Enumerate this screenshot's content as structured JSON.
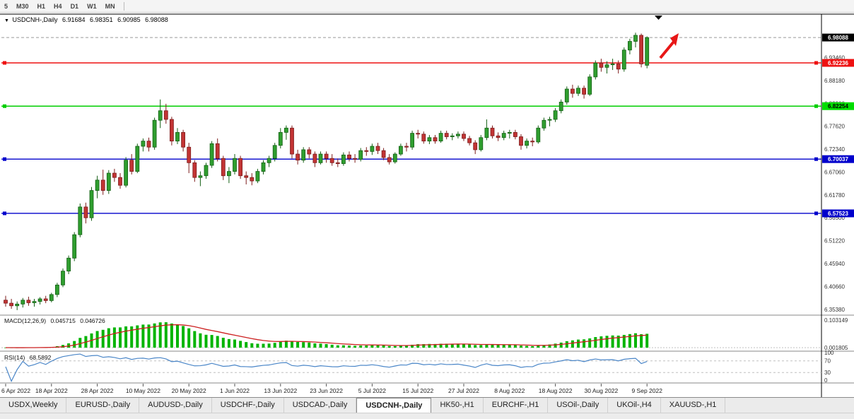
{
  "colors": {
    "bull": "#2f9e2f",
    "bull_dark": "#166016",
    "bear": "#c23434",
    "bear_dark": "#7e1d1d",
    "macd_histogram": "#00b400",
    "macd_signal": "#cc2020",
    "rsi_line": "#4a86c8",
    "arrow": "#e81717",
    "axis_text": "#333333",
    "date_text": "#222222"
  },
  "toolbar": {
    "timeframes": [
      "5",
      "M30",
      "H1",
      "H4",
      "D1",
      "W1",
      "MN"
    ]
  },
  "quote_line": {
    "symbol": "USDCNH-,Daily",
    "open": "6.91684",
    "high": "6.98351",
    "low": "6.90985",
    "close": "6.98088"
  },
  "chart_data": {
    "type": "candlestick",
    "symbol": "USDCNH",
    "timeframe": "Daily",
    "ylim": [
      6.342,
      7.035
    ],
    "y_axis_labels": [
      "6.93460",
      "6.88180",
      "6.82900",
      "6.77620",
      "6.72340",
      "6.67060",
      "6.61780",
      "6.56500",
      "6.51220",
      "6.45940",
      "6.40660",
      "6.35380"
    ],
    "x_dates": [
      [
        "6 Apr 2022",
        0
      ],
      [
        "18 Apr 2022",
        8
      ],
      [
        "28 Apr 2022",
        16
      ],
      [
        "10 May 2022",
        24
      ],
      [
        "20 May 2022",
        32
      ],
      [
        "1 Jun 2022",
        40
      ],
      [
        "13 Jun 2022",
        48
      ],
      [
        "23 Jun 2022",
        56
      ],
      [
        "5 Jul 2022",
        64
      ],
      [
        "15 Jul 2022",
        72
      ],
      [
        "27 Jul 2022",
        80
      ],
      [
        "8 Aug 2022",
        88
      ],
      [
        "18 Aug 2022",
        96
      ],
      [
        "30 Aug 2022",
        104
      ],
      [
        "9 Sep 2022",
        112
      ]
    ],
    "candles": [
      [
        6.375,
        6.385,
        6.36,
        6.368
      ],
      [
        6.368,
        6.378,
        6.355,
        6.362
      ],
      [
        6.362,
        6.372,
        6.352,
        6.366
      ],
      [
        6.366,
        6.38,
        6.358,
        6.375
      ],
      [
        6.375,
        6.383,
        6.362,
        6.369
      ],
      [
        6.369,
        6.378,
        6.36,
        6.372
      ],
      [
        6.372,
        6.382,
        6.365,
        6.378
      ],
      [
        6.378,
        6.385,
        6.368,
        6.374
      ],
      [
        6.374,
        6.392,
        6.37,
        6.388
      ],
      [
        6.388,
        6.415,
        6.382,
        6.41
      ],
      [
        6.41,
        6.448,
        6.405,
        6.442
      ],
      [
        6.442,
        6.478,
        6.435,
        6.472
      ],
      [
        6.472,
        6.532,
        6.465,
        6.526
      ],
      [
        6.526,
        6.598,
        6.52,
        6.59
      ],
      [
        6.59,
        6.6,
        6.552,
        6.565
      ],
      [
        6.565,
        6.636,
        6.558,
        6.628
      ],
      [
        6.628,
        6.662,
        6.61,
        6.652
      ],
      [
        6.652,
        6.676,
        6.618,
        6.628
      ],
      [
        6.628,
        6.675,
        6.62,
        6.668
      ],
      [
        6.668,
        6.678,
        6.648,
        6.658
      ],
      [
        6.658,
        6.668,
        6.632,
        6.64
      ],
      [
        6.64,
        6.705,
        6.635,
        6.698
      ],
      [
        6.698,
        6.712,
        6.665,
        6.672
      ],
      [
        6.672,
        6.736,
        6.668,
        6.73
      ],
      [
        6.73,
        6.748,
        6.718,
        6.742
      ],
      [
        6.742,
        6.75,
        6.718,
        6.728
      ],
      [
        6.728,
        6.796,
        6.722,
        6.79
      ],
      [
        6.79,
        6.838,
        6.772,
        6.812
      ],
      [
        6.812,
        6.828,
        6.782,
        6.792
      ],
      [
        6.792,
        6.798,
        6.732,
        6.742
      ],
      [
        6.742,
        6.772,
        6.735,
        6.762
      ],
      [
        6.762,
        6.768,
        6.718,
        6.728
      ],
      [
        6.728,
        6.738,
        6.668,
        6.692
      ],
      [
        6.692,
        6.698,
        6.648,
        6.658
      ],
      [
        6.658,
        6.672,
        6.638,
        6.662
      ],
      [
        6.662,
        6.692,
        6.655,
        6.686
      ],
      [
        6.686,
        6.742,
        6.68,
        6.736
      ],
      [
        6.736,
        6.748,
        6.695,
        6.702
      ],
      [
        6.702,
        6.708,
        6.652,
        6.662
      ],
      [
        6.662,
        6.682,
        6.645,
        6.672
      ],
      [
        6.672,
        6.712,
        6.665,
        6.702
      ],
      [
        6.702,
        6.708,
        6.655,
        6.662
      ],
      [
        6.662,
        6.672,
        6.642,
        6.658
      ],
      [
        6.658,
        6.668,
        6.64,
        6.65
      ],
      [
        6.65,
        6.678,
        6.645,
        6.672
      ],
      [
        6.672,
        6.698,
        6.665,
        6.692
      ],
      [
        6.692,
        6.708,
        6.682,
        6.702
      ],
      [
        6.702,
        6.738,
        6.695,
        6.732
      ],
      [
        6.732,
        6.772,
        6.725,
        6.762
      ],
      [
        6.762,
        6.778,
        6.745,
        6.772
      ],
      [
        6.772,
        6.778,
        6.702,
        6.712
      ],
      [
        6.712,
        6.722,
        6.688,
        6.698
      ],
      [
        6.698,
        6.728,
        6.692,
        6.722
      ],
      [
        6.722,
        6.728,
        6.702,
        6.712
      ],
      [
        6.712,
        6.718,
        6.682,
        6.692
      ],
      [
        6.692,
        6.718,
        6.688,
        6.712
      ],
      [
        6.712,
        6.718,
        6.692,
        6.702
      ],
      [
        6.702,
        6.712,
        6.685,
        6.692
      ],
      [
        6.692,
        6.702,
        6.682,
        6.69
      ],
      [
        6.69,
        6.716,
        6.685,
        6.71
      ],
      [
        6.71,
        6.718,
        6.695,
        6.702
      ],
      [
        6.702,
        6.712,
        6.692,
        6.7
      ],
      [
        6.7,
        6.726,
        6.695,
        6.72
      ],
      [
        6.72,
        6.728,
        6.708,
        6.718
      ],
      [
        6.718,
        6.736,
        6.71,
        6.73
      ],
      [
        6.73,
        6.738,
        6.712,
        6.72
      ],
      [
        6.72,
        6.726,
        6.698,
        6.704
      ],
      [
        6.704,
        6.712,
        6.688,
        6.694
      ],
      [
        6.694,
        6.716,
        6.69,
        6.712
      ],
      [
        6.712,
        6.736,
        6.708,
        6.73
      ],
      [
        6.73,
        6.738,
        6.718,
        6.728
      ],
      [
        6.728,
        6.766,
        6.722,
        6.76
      ],
      [
        6.76,
        6.768,
        6.748,
        6.758
      ],
      [
        6.758,
        6.764,
        6.736,
        6.742
      ],
      [
        6.742,
        6.756,
        6.735,
        6.75
      ],
      [
        6.75,
        6.756,
        6.736,
        6.742
      ],
      [
        6.742,
        6.766,
        6.738,
        6.76
      ],
      [
        6.76,
        6.766,
        6.746,
        6.752
      ],
      [
        6.752,
        6.76,
        6.744,
        6.754
      ],
      [
        6.754,
        6.764,
        6.748,
        6.758
      ],
      [
        6.758,
        6.764,
        6.742,
        6.748
      ],
      [
        6.748,
        6.754,
        6.732,
        6.738
      ],
      [
        6.738,
        6.744,
        6.712,
        6.722
      ],
      [
        6.722,
        6.756,
        6.718,
        6.75
      ],
      [
        6.75,
        6.792,
        6.744,
        6.772
      ],
      [
        6.772,
        6.778,
        6.748,
        6.754
      ],
      [
        6.754,
        6.762,
        6.742,
        6.75
      ],
      [
        6.75,
        6.766,
        6.744,
        6.76
      ],
      [
        6.76,
        6.768,
        6.748,
        6.762
      ],
      [
        6.762,
        6.768,
        6.746,
        6.752
      ],
      [
        6.752,
        6.758,
        6.722,
        6.732
      ],
      [
        6.732,
        6.748,
        6.725,
        6.742
      ],
      [
        6.742,
        6.75,
        6.73,
        6.74
      ],
      [
        6.74,
        6.778,
        6.736,
        6.772
      ],
      [
        6.772,
        6.796,
        6.766,
        6.79
      ],
      [
        6.79,
        6.798,
        6.776,
        6.792
      ],
      [
        6.792,
        6.818,
        6.786,
        6.812
      ],
      [
        6.812,
        6.838,
        6.806,
        6.832
      ],
      [
        6.832,
        6.868,
        6.826,
        6.862
      ],
      [
        6.862,
        6.872,
        6.842,
        6.852
      ],
      [
        6.852,
        6.87,
        6.846,
        6.864
      ],
      [
        6.864,
        6.87,
        6.84,
        6.85
      ],
      [
        6.85,
        6.896,
        6.846,
        6.89
      ],
      [
        6.89,
        6.928,
        6.884,
        6.922
      ],
      [
        6.922,
        6.932,
        6.902,
        6.912
      ],
      [
        6.912,
        6.926,
        6.898,
        6.918
      ],
      [
        6.918,
        6.932,
        6.906,
        6.92
      ],
      [
        6.92,
        6.928,
        6.898,
        6.908
      ],
      [
        6.908,
        6.958,
        6.902,
        6.952
      ],
      [
        6.952,
        6.978,
        6.942,
        6.972
      ],
      [
        6.972,
        6.992,
        6.958,
        6.986
      ],
      [
        6.986,
        6.99,
        6.912,
        6.92
      ],
      [
        6.91684,
        6.98351,
        6.90985,
        6.98088
      ]
    ],
    "horizontal_lines": [
      {
        "name": "last-price",
        "price": 6.98088,
        "label": "6.98088",
        "color": "#999999",
        "badge_bg": "#000000",
        "badge_text": "#ffffff",
        "style": "dashed",
        "handles": false
      },
      {
        "name": "resistance-red",
        "price": 6.92236,
        "label": "6.92236",
        "color": "#ee1111",
        "badge_bg": "#ee1111",
        "badge_text": "#ffffff",
        "style": "solid",
        "handles": true
      },
      {
        "name": "level-green",
        "price": 6.82254,
        "label": "6.82254",
        "color": "#00ce00",
        "badge_bg": "#00dd00",
        "badge_text": "#000000",
        "style": "solid",
        "handles": true
      },
      {
        "name": "support-blue-1",
        "price": 6.70037,
        "label": "6.70037",
        "color": "#0000cc",
        "badge_bg": "#0000cc",
        "badge_text": "#ffffff",
        "style": "solid",
        "handles": true
      },
      {
        "name": "support-blue-2",
        "price": 6.57523,
        "label": "6.57523",
        "color": "#0000cc",
        "badge_bg": "#0000cc",
        "badge_text": "#ffffff",
        "style": "solid",
        "handles": true
      }
    ],
    "indicators": {
      "macd": {
        "label": "MACD(12,26,9)",
        "value_main": "0.045715",
        "value_signal": "0.046726",
        "params": [
          12,
          26,
          9
        ],
        "axis_labels": [
          "0.103149",
          "0.001805"
        ]
      },
      "rsi": {
        "label": "RSI(14)",
        "value": "68.5892",
        "period": 14,
        "axis_labels": [
          "100",
          "70",
          "30",
          "0"
        ],
        "levels": [
          70,
          30
        ]
      }
    }
  },
  "tabs": [
    {
      "label": "USDX,Weekly",
      "active": false
    },
    {
      "label": "EURUSD-,Daily",
      "active": false
    },
    {
      "label": "AUDUSD-,Daily",
      "active": false
    },
    {
      "label": "USDCHF-,Daily",
      "active": false
    },
    {
      "label": "USDCAD-,Daily",
      "active": false
    },
    {
      "label": "USDCNH-,Daily",
      "active": true
    },
    {
      "label": "HK50-,H1",
      "active": false
    },
    {
      "label": "EURCHF-,H1",
      "active": false
    },
    {
      "label": "USOil-,Daily",
      "active": false
    },
    {
      "label": "UKOil-,H4",
      "active": false
    },
    {
      "label": "XAUUSD-,H1",
      "active": false
    }
  ]
}
